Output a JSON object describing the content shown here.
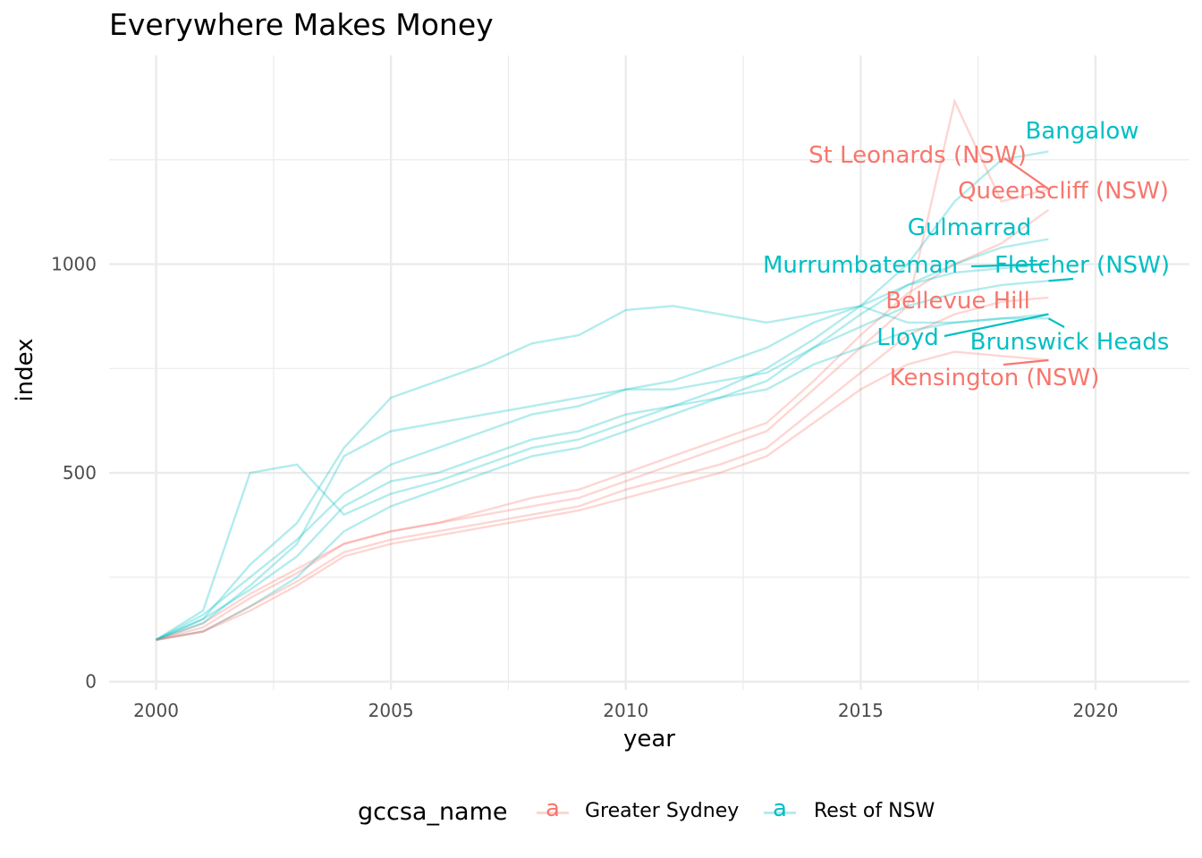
{
  "chart_data": {
    "type": "line",
    "title": "Everywhere Makes Money",
    "xlabel": "year",
    "ylabel": "index",
    "xlim": [
      1999,
      2022
    ],
    "ylim": [
      -20,
      1500
    ],
    "x_ticks": [
      2000,
      2005,
      2010,
      2015,
      2020
    ],
    "y_ticks": [
      0,
      500,
      1000
    ],
    "grid": true,
    "legend": {
      "title": "gccsa_name",
      "position": "bottom",
      "key_glyph": "a",
      "entries": [
        {
          "name": "Greater Sydney",
          "color": "#F8766D"
        },
        {
          "name": "Rest of NSW",
          "color": "#00BFC4"
        }
      ]
    },
    "x": [
      2000,
      2001,
      2002,
      2003,
      2004,
      2005,
      2006,
      2007,
      2008,
      2009,
      2010,
      2011,
      2012,
      2013,
      2014,
      2015,
      2016,
      2017,
      2018,
      2019
    ],
    "series": [
      {
        "name": "Bangalow",
        "group": "Rest of NSW",
        "values": [
          100,
          150,
          220,
          300,
          420,
          480,
          500,
          540,
          580,
          600,
          640,
          660,
          700,
          750,
          820,
          900,
          1000,
          1150,
          1250,
          1270
        ]
      },
      {
        "name": "St Leonards (NSW)",
        "group": "Greater Sydney",
        "values": [
          100,
          130,
          200,
          260,
          330,
          360,
          380,
          400,
          420,
          440,
          480,
          520,
          560,
          600,
          700,
          800,
          900,
          1390,
          1150,
          1180
        ]
      },
      {
        "name": "Queenscliff (NSW)",
        "group": "Greater Sydney",
        "values": [
          100,
          140,
          210,
          270,
          330,
          360,
          380,
          410,
          440,
          460,
          500,
          540,
          580,
          620,
          720,
          830,
          930,
          1000,
          1050,
          1130
        ]
      },
      {
        "name": "Gulmarrad",
        "group": "Rest of NSW",
        "values": [
          100,
          120,
          180,
          250,
          360,
          420,
          460,
          500,
          540,
          560,
          600,
          640,
          680,
          720,
          800,
          880,
          950,
          1000,
          1040,
          1060
        ]
      },
      {
        "name": "Murrumbateman",
        "group": "Rest of NSW",
        "values": [
          100,
          160,
          250,
          340,
          450,
          520,
          560,
          600,
          640,
          660,
          700,
          720,
          760,
          800,
          860,
          900,
          950,
          980,
          990,
          1000
        ]
      },
      {
        "name": "Fletcher (NSW)",
        "group": "Rest of NSW",
        "values": [
          100,
          140,
          230,
          330,
          540,
          600,
          620,
          640,
          660,
          680,
          700,
          700,
          720,
          740,
          800,
          850,
          900,
          930,
          950,
          960
        ]
      },
      {
        "name": "Bellevue Hill",
        "group": "Greater Sydney",
        "values": [
          100,
          120,
          180,
          240,
          310,
          340,
          360,
          380,
          400,
          420,
          460,
          490,
          520,
          560,
          650,
          740,
          830,
          880,
          910,
          920
        ]
      },
      {
        "name": "Lloyd",
        "group": "Rest of NSW",
        "values": [
          100,
          170,
          500,
          520,
          400,
          450,
          480,
          520,
          560,
          580,
          620,
          660,
          680,
          700,
          760,
          800,
          840,
          860,
          870,
          880
        ]
      },
      {
        "name": "Brunswick Heads",
        "group": "Rest of NSW",
        "values": [
          100,
          150,
          280,
          380,
          560,
          680,
          720,
          760,
          810,
          830,
          890,
          900,
          880,
          860,
          880,
          900,
          860,
          860,
          870,
          870
        ]
      },
      {
        "name": "Kensington (NSW)",
        "group": "Greater Sydney",
        "values": [
          100,
          120,
          170,
          230,
          300,
          330,
          350,
          370,
          390,
          410,
          440,
          470,
          500,
          540,
          620,
          700,
          760,
          790,
          780,
          770
        ]
      }
    ],
    "annotations": [
      {
        "label": "Bangalow",
        "group": "Rest of NSW",
        "x": 2019,
        "y": 1270
      },
      {
        "label": "St Leonards (NSW)",
        "group": "Greater Sydney",
        "x": 2019,
        "y": 1180
      },
      {
        "label": "Queenscliff (NSW)",
        "group": "Greater Sydney",
        "x": 2019,
        "y": 1130
      },
      {
        "label": "Gulmarrad",
        "group": "Rest of NSW",
        "x": 2019,
        "y": 1060
      },
      {
        "label": "Murrumbateman",
        "group": "Rest of NSW",
        "x": 2019,
        "y": 1000
      },
      {
        "label": "Fletcher (NSW)",
        "group": "Rest of NSW",
        "x": 2019,
        "y": 960
      },
      {
        "label": "Bellevue Hill",
        "group": "Greater Sydney",
        "x": 2019,
        "y": 920
      },
      {
        "label": "Lloyd",
        "group": "Rest of NSW",
        "x": 2019,
        "y": 880
      },
      {
        "label": "Brunswick Heads",
        "group": "Rest of NSW",
        "x": 2019,
        "y": 870
      },
      {
        "label": "Kensington (NSW)",
        "group": "Greater Sydney",
        "x": 2019,
        "y": 770
      }
    ]
  }
}
